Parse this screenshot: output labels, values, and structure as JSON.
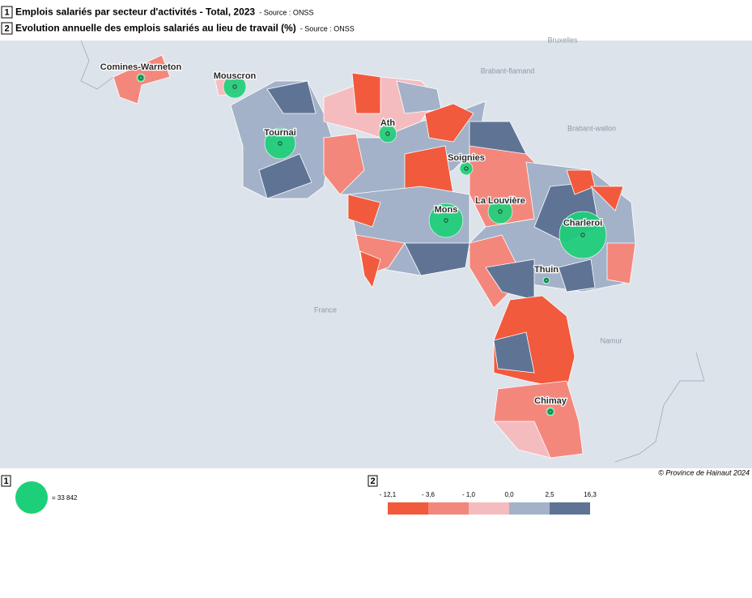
{
  "header": {
    "layers": [
      {
        "num": "1",
        "title": "Emplois salariés par secteur d'activités - Total, 2023",
        "source": "- Source : ONSS"
      },
      {
        "num": "2",
        "title": "Evolution annuelle des emplois salariés au lieu de travail (%)",
        "source": "- Source : ONSS"
      }
    ]
  },
  "map": {
    "neighbors": [
      "Bruxelles",
      "Brabant-flamand",
      "Brabant-wallon",
      "France",
      "Namur"
    ],
    "cities": [
      {
        "name": "Comines-Warneton",
        "jobs": 2100
      },
      {
        "name": "Mouscron",
        "jobs": 16600
      },
      {
        "name": "Tournai",
        "jobs": 30500
      },
      {
        "name": "Ath",
        "jobs": 10000
      },
      {
        "name": "Soignies",
        "jobs": 5400
      },
      {
        "name": "La Louvière",
        "jobs": 19000
      },
      {
        "name": "Mons",
        "jobs": 37000
      },
      {
        "name": "Charleroi",
        "jobs": 71000
      },
      {
        "name": "Thuin",
        "jobs": 1350
      },
      {
        "name": "Chimay",
        "jobs": 2100
      }
    ],
    "circle_color": "#1ecf7a"
  },
  "copyright": "© Province de Hainaut 2024",
  "legend": {
    "circle": {
      "num": "1",
      "value": 33842,
      "label": "= 33 842"
    },
    "choropleth": {
      "num": "2",
      "breaks": [
        "- 12,1",
        "- 3,6",
        "- 1,0",
        "0,0",
        "2,5",
        "16,3"
      ],
      "colors": [
        "#f15a3c",
        "#f4877c",
        "#f5bcc0",
        "#a3b2c8",
        "#5f7495"
      ]
    }
  }
}
